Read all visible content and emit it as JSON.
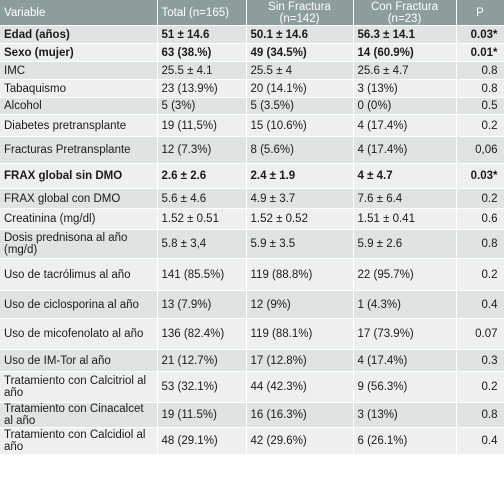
{
  "table": {
    "headers": [
      "Variable",
      "Total (n=165)",
      "Sin Fractura (n=142)",
      "Con Fractura (n=23)",
      "P"
    ],
    "rows": [
      {
        "cells": [
          "Edad (años)",
          "51 ± 14.6",
          "50.1 ± 14.6",
          "56.3 ± 14.1",
          "0.03*"
        ],
        "bold": true
      },
      {
        "cells": [
          "Sexo (mujer)",
          "63 (38.%)",
          "49 (34.5%)",
          "14 (60.9%)",
          "0.01*"
        ],
        "bold": true
      },
      {
        "cells": [
          "IMC",
          "25.5 ± 4.1",
          "25.5 ± 4",
          "25.6 ± 4.7",
          "0.8"
        ],
        "bold": false
      },
      {
        "cells": [
          "Tabaquismo",
          "23 (13.9%)",
          "20 (14.1%)",
          "3 (13%)",
          "0.8"
        ],
        "bold": false
      },
      {
        "cells": [
          "Alcohol",
          "5 (3%)",
          "5 (3.5%)",
          "0 (0%)",
          "0.5"
        ],
        "bold": false
      },
      {
        "cells": [
          "Diabetes pretransplante",
          "19 (11,5%)",
          "15 (10.6%)",
          "4 (17.4%)",
          "0.2"
        ],
        "bold": false
      },
      {
        "cells": [
          "Fracturas Pretransplante",
          "12 (7.3%)",
          "8 (5.6%)",
          "4 (17.4%)",
          "0,06"
        ],
        "bold": false
      },
      {
        "cells": [
          "FRAX global sin DMO",
          "2.6 ± 2.6",
          "2.4 ± 1.9",
          "4 ± 4.7",
          "0.03*"
        ],
        "bold": true
      },
      {
        "cells": [
          "FRAX global con DMO",
          "5.6 ± 4.6",
          "4.9 ± 3.7",
          "7.6 ± 6.4",
          "0.2"
        ],
        "bold": false
      },
      {
        "cells": [
          "Creatinina (mg/dl)",
          "1.52 ± 0.51",
          "1.52 ± 0.52",
          "1.51 ± 0.41",
          "0.6"
        ],
        "bold": false
      },
      {
        "cells": [
          "Dosis prednisona al año (mg/d)",
          "5.8 ± 3,4",
          "5.9 ± 3.5",
          "5.9 ± 2.6",
          "0.8"
        ],
        "bold": false
      },
      {
        "cells": [
          "Uso de tacrólimus al año",
          "141 (85.5%)",
          "119 (88.8%)",
          "22 (95.7%)",
          "0.2"
        ],
        "bold": false
      },
      {
        "cells": [
          "Uso de ciclosporina al año",
          "13 (7.9%)",
          "12 (9%)",
          "1 (4.3%)",
          "0.4"
        ],
        "bold": false
      },
      {
        "cells": [
          "Uso de micofenolato al año",
          "136 (82.4%)",
          "119 (88.1%)",
          "17 (73.9%)",
          "0.07"
        ],
        "bold": false
      },
      {
        "cells": [
          "Uso de IM-Tor al año",
          "21 (12.7%)",
          "17 (12.8%)",
          "4 (17.4%)",
          "0.3"
        ],
        "bold": false
      },
      {
        "cells": [
          "Tratamiento con Calcitriol al año",
          "53 (32.1%)",
          "44 (42.3%)",
          "9 (56.3%)",
          "0.2"
        ],
        "bold": false
      },
      {
        "cells": [
          "Tratamiento con Cinacalcet al año",
          "19 (11.5%)",
          "16 (16.3%)",
          "3 (13%)",
          "0.8"
        ],
        "bold": false
      },
      {
        "cells": [
          "Tratamiento con Calcidiol al año",
          "48 (29.1%)",
          "42 (29.6%)",
          "6 (26.1%)",
          "0.4"
        ],
        "bold": false
      }
    ]
  },
  "colors": {
    "header_bg": "#8c9d9d",
    "row_odd": "#dfe3e3",
    "row_even": "#eef0f0",
    "header_text": "#ffffff"
  }
}
